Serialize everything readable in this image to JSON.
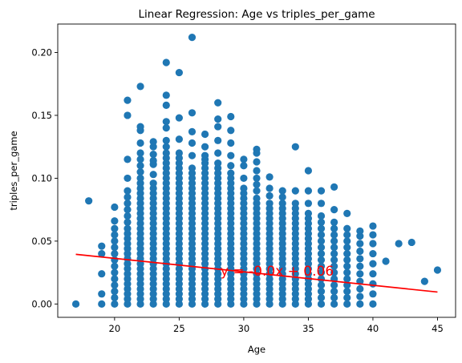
{
  "chart_data": {
    "type": "scatter",
    "title": "Linear Regression: Age vs triples_per_game",
    "xlabel": "Age",
    "ylabel": "triples_per_game",
    "xlim": [
      15.6,
      46.4
    ],
    "ylim": [
      -0.0106,
      0.2226
    ],
    "xticks": [
      20,
      25,
      30,
      35,
      40,
      45
    ],
    "yticks": [
      0.0,
      0.05,
      0.1,
      0.15,
      0.2
    ],
    "xtick_labels": [
      "20",
      "25",
      "30",
      "35",
      "40",
      "45"
    ],
    "ytick_labels": [
      "0.00",
      "0.05",
      "0.10",
      "0.15",
      "0.20"
    ],
    "grid": false,
    "marker_color": "#1f77b4",
    "line_color": "#ff0000",
    "annotation": {
      "text": "y = -0.0x + 0.06",
      "x": 28.2,
      "y": 0.0265
    },
    "regression_line": {
      "x": [
        17,
        45
      ],
      "y": [
        0.0395,
        0.0095
      ]
    },
    "columns": [
      {
        "age": 17,
        "values": [
          0.0
        ]
      },
      {
        "age": 18,
        "values": [
          0.082
        ]
      },
      {
        "age": 19,
        "values": [
          0.0,
          0.008,
          0.024,
          0.04,
          0.046
        ]
      },
      {
        "age": 20,
        "values": [
          0.0,
          0.005,
          0.01,
          0.015,
          0.02,
          0.025,
          0.03,
          0.035,
          0.04,
          0.045,
          0.05,
          0.055,
          0.06,
          0.066,
          0.077
        ]
      },
      {
        "age": 21,
        "values": [
          0.0,
          0.004,
          0.008,
          0.012,
          0.016,
          0.02,
          0.024,
          0.028,
          0.032,
          0.036,
          0.04,
          0.044,
          0.048,
          0.052,
          0.056,
          0.06,
          0.065,
          0.07,
          0.075,
          0.08,
          0.085,
          0.09,
          0.1,
          0.115,
          0.15,
          0.162
        ]
      },
      {
        "age": 22,
        "values": [
          0.0,
          0.004,
          0.008,
          0.012,
          0.016,
          0.02,
          0.024,
          0.028,
          0.032,
          0.036,
          0.04,
          0.044,
          0.048,
          0.052,
          0.056,
          0.06,
          0.064,
          0.068,
          0.072,
          0.076,
          0.08,
          0.084,
          0.088,
          0.092,
          0.096,
          0.1,
          0.105,
          0.11,
          0.115,
          0.12,
          0.128,
          0.138,
          0.141,
          0.173
        ]
      },
      {
        "age": 23,
        "values": [
          0.0,
          0.004,
          0.008,
          0.012,
          0.016,
          0.02,
          0.024,
          0.028,
          0.032,
          0.036,
          0.04,
          0.044,
          0.048,
          0.052,
          0.056,
          0.06,
          0.064,
          0.068,
          0.072,
          0.076,
          0.08,
          0.084,
          0.088,
          0.092,
          0.096,
          0.103,
          0.111,
          0.114,
          0.119,
          0.125,
          0.129
        ]
      },
      {
        "age": 24,
        "values": [
          0.0,
          0.004,
          0.008,
          0.012,
          0.016,
          0.02,
          0.024,
          0.028,
          0.032,
          0.036,
          0.04,
          0.044,
          0.048,
          0.052,
          0.056,
          0.06,
          0.064,
          0.068,
          0.072,
          0.076,
          0.08,
          0.084,
          0.088,
          0.092,
          0.096,
          0.1,
          0.104,
          0.108,
          0.112,
          0.116,
          0.12,
          0.125,
          0.13,
          0.14,
          0.145,
          0.158,
          0.166,
          0.192
        ]
      },
      {
        "age": 25,
        "values": [
          0.0,
          0.004,
          0.008,
          0.012,
          0.016,
          0.02,
          0.024,
          0.028,
          0.032,
          0.036,
          0.04,
          0.044,
          0.048,
          0.052,
          0.056,
          0.06,
          0.064,
          0.068,
          0.072,
          0.076,
          0.08,
          0.084,
          0.088,
          0.092,
          0.096,
          0.1,
          0.104,
          0.108,
          0.112,
          0.116,
          0.12,
          0.131,
          0.148,
          0.184
        ]
      },
      {
        "age": 26,
        "values": [
          0.0,
          0.004,
          0.008,
          0.012,
          0.016,
          0.02,
          0.024,
          0.028,
          0.032,
          0.036,
          0.04,
          0.044,
          0.048,
          0.052,
          0.056,
          0.06,
          0.064,
          0.068,
          0.072,
          0.076,
          0.08,
          0.084,
          0.088,
          0.092,
          0.096,
          0.1,
          0.104,
          0.108,
          0.118,
          0.128,
          0.137,
          0.152,
          0.212
        ]
      },
      {
        "age": 27,
        "values": [
          0.0,
          0.004,
          0.008,
          0.012,
          0.016,
          0.02,
          0.024,
          0.028,
          0.032,
          0.036,
          0.04,
          0.044,
          0.048,
          0.052,
          0.056,
          0.06,
          0.064,
          0.068,
          0.072,
          0.076,
          0.08,
          0.084,
          0.088,
          0.092,
          0.096,
          0.1,
          0.104,
          0.108,
          0.112,
          0.115,
          0.118,
          0.125,
          0.135
        ]
      },
      {
        "age": 28,
        "values": [
          0.0,
          0.004,
          0.008,
          0.012,
          0.016,
          0.02,
          0.024,
          0.028,
          0.032,
          0.036,
          0.04,
          0.044,
          0.048,
          0.052,
          0.056,
          0.06,
          0.064,
          0.068,
          0.072,
          0.076,
          0.08,
          0.084,
          0.088,
          0.092,
          0.096,
          0.1,
          0.104,
          0.108,
          0.112,
          0.12,
          0.13,
          0.141,
          0.147,
          0.16
        ]
      },
      {
        "age": 29,
        "values": [
          0.0,
          0.004,
          0.008,
          0.012,
          0.016,
          0.02,
          0.024,
          0.028,
          0.032,
          0.036,
          0.04,
          0.044,
          0.048,
          0.052,
          0.056,
          0.06,
          0.064,
          0.068,
          0.072,
          0.076,
          0.08,
          0.084,
          0.088,
          0.092,
          0.096,
          0.1,
          0.104,
          0.11,
          0.118,
          0.128,
          0.138,
          0.149
        ]
      },
      {
        "age": 30,
        "values": [
          0.0,
          0.004,
          0.008,
          0.012,
          0.016,
          0.02,
          0.024,
          0.028,
          0.032,
          0.036,
          0.04,
          0.044,
          0.048,
          0.052,
          0.056,
          0.06,
          0.064,
          0.068,
          0.072,
          0.076,
          0.08,
          0.084,
          0.088,
          0.092,
          0.1,
          0.11,
          0.115
        ]
      },
      {
        "age": 31,
        "values": [
          0.0,
          0.004,
          0.008,
          0.012,
          0.016,
          0.02,
          0.024,
          0.028,
          0.032,
          0.036,
          0.04,
          0.044,
          0.048,
          0.052,
          0.056,
          0.06,
          0.064,
          0.068,
          0.072,
          0.076,
          0.08,
          0.084,
          0.09,
          0.095,
          0.1,
          0.106,
          0.113,
          0.12,
          0.123
        ]
      },
      {
        "age": 32,
        "values": [
          0.0,
          0.004,
          0.008,
          0.012,
          0.016,
          0.02,
          0.024,
          0.028,
          0.032,
          0.036,
          0.04,
          0.044,
          0.048,
          0.052,
          0.056,
          0.06,
          0.064,
          0.068,
          0.072,
          0.076,
          0.08,
          0.086,
          0.092,
          0.101
        ]
      },
      {
        "age": 33,
        "values": [
          0.0,
          0.004,
          0.008,
          0.012,
          0.016,
          0.02,
          0.024,
          0.028,
          0.032,
          0.036,
          0.04,
          0.044,
          0.048,
          0.052,
          0.056,
          0.06,
          0.064,
          0.068,
          0.072,
          0.076,
          0.08,
          0.085,
          0.09
        ]
      },
      {
        "age": 34,
        "values": [
          0.0,
          0.004,
          0.008,
          0.012,
          0.016,
          0.02,
          0.024,
          0.028,
          0.032,
          0.036,
          0.04,
          0.044,
          0.048,
          0.052,
          0.056,
          0.06,
          0.064,
          0.068,
          0.072,
          0.076,
          0.08,
          0.09,
          0.125
        ]
      },
      {
        "age": 35,
        "values": [
          0.0,
          0.004,
          0.008,
          0.012,
          0.016,
          0.02,
          0.024,
          0.028,
          0.032,
          0.036,
          0.04,
          0.044,
          0.048,
          0.052,
          0.056,
          0.06,
          0.064,
          0.068,
          0.072,
          0.08,
          0.09,
          0.106
        ]
      },
      {
        "age": 36,
        "values": [
          0.0,
          0.005,
          0.01,
          0.015,
          0.02,
          0.025,
          0.03,
          0.035,
          0.04,
          0.045,
          0.05,
          0.055,
          0.06,
          0.065,
          0.07,
          0.08,
          0.09
        ]
      },
      {
        "age": 37,
        "values": [
          0.0,
          0.005,
          0.01,
          0.015,
          0.02,
          0.025,
          0.03,
          0.035,
          0.04,
          0.045,
          0.05,
          0.055,
          0.06,
          0.065,
          0.075,
          0.093
        ]
      },
      {
        "age": 38,
        "values": [
          0.0,
          0.005,
          0.01,
          0.015,
          0.02,
          0.025,
          0.03,
          0.035,
          0.04,
          0.045,
          0.05,
          0.055,
          0.06,
          0.072
        ]
      },
      {
        "age": 39,
        "values": [
          0.0,
          0.006,
          0.012,
          0.018,
          0.024,
          0.03,
          0.036,
          0.042,
          0.048,
          0.054,
          0.058
        ]
      },
      {
        "age": 40,
        "values": [
          0.0,
          0.008,
          0.016,
          0.024,
          0.032,
          0.04,
          0.048,
          0.055,
          0.062
        ]
      },
      {
        "age": 41,
        "values": [
          0.034
        ]
      },
      {
        "age": 42,
        "values": [
          0.048
        ]
      },
      {
        "age": 43,
        "values": [
          0.049
        ]
      },
      {
        "age": 44,
        "values": [
          0.018
        ]
      },
      {
        "age": 45,
        "values": [
          0.027
        ]
      }
    ]
  }
}
